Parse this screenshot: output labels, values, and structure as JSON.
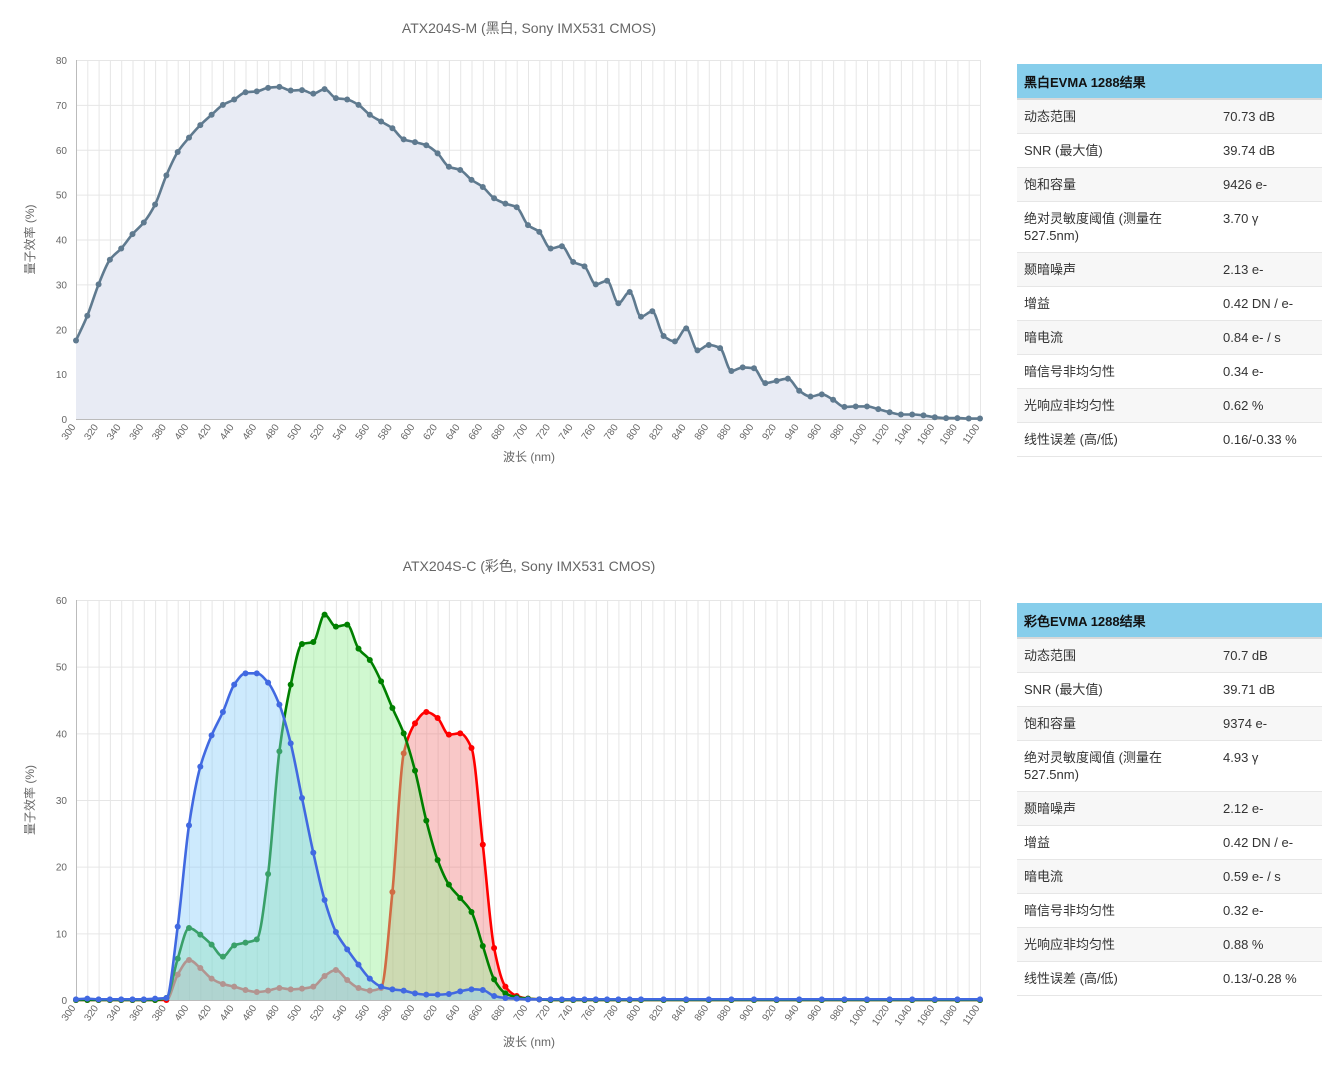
{
  "chart_data": [
    {
      "type": "area",
      "title": "ATX204S-M (黑白, Sony IMX531 CMOS)",
      "xlabel": "波长 (nm)",
      "ylabel": "量子效率 (%)",
      "xlim": [
        300,
        1100
      ],
      "ylim": [
        0,
        80
      ],
      "x_ticks": [
        300,
        320,
        340,
        360,
        380,
        400,
        420,
        440,
        460,
        480,
        500,
        520,
        540,
        560,
        580,
        600,
        620,
        640,
        660,
        680,
        700,
        720,
        740,
        760,
        780,
        800,
        820,
        840,
        860,
        880,
        900,
        920,
        940,
        960,
        980,
        1000,
        1020,
        1040,
        1060,
        1080,
        1100
      ],
      "y_ticks": [
        0,
        10,
        20,
        30,
        40,
        50,
        60,
        70,
        80
      ],
      "grid": true,
      "legend": "none",
      "series": [
        {
          "color": "#5f7a8f",
          "fill": "#e8ebf4",
          "x": [
            300,
            310,
            320,
            330,
            340,
            350,
            360,
            370,
            380,
            390,
            400,
            410,
            420,
            430,
            440,
            450,
            460,
            470,
            480,
            490,
            500,
            510,
            520,
            530,
            540,
            550,
            560,
            570,
            580,
            590,
            600,
            610,
            620,
            630,
            640,
            650,
            660,
            670,
            680,
            690,
            700,
            710,
            720,
            730,
            740,
            750,
            760,
            770,
            780,
            790,
            800,
            810,
            820,
            830,
            840,
            850,
            860,
            870,
            880,
            890,
            900,
            910,
            920,
            930,
            940,
            950,
            960,
            970,
            980,
            990,
            1000,
            1010,
            1020,
            1030,
            1040,
            1050,
            1060,
            1070,
            1080,
            1090,
            1100
          ],
          "values": [
            17.5,
            23,
            30,
            35.5,
            38,
            41.2,
            43.8,
            47.8,
            54.3,
            59.5,
            62.7,
            65.5,
            67.8,
            70,
            71.2,
            72.8,
            73,
            73.8,
            74,
            73.2,
            73.3,
            72.5,
            73.5,
            71.5,
            71.2,
            70,
            67.8,
            66.3,
            64.8,
            62.3,
            61.7,
            61,
            59.2,
            56.2,
            55.5,
            53.3,
            51.7,
            49.2,
            48,
            47.2,
            43.2,
            41.7,
            38,
            38.5,
            35,
            34,
            30,
            30.8,
            25.8,
            28.3,
            22.8,
            24,
            18.5,
            17.3,
            20.2,
            15.3,
            16.5,
            15.8,
            10.7,
            11.5,
            11.3,
            8,
            8.5,
            9,
            6.3,
            5,
            5.5,
            4.3,
            2.7,
            2.8,
            2.8,
            2.2,
            1.5,
            1,
            1,
            0.8,
            0.4,
            0.2,
            0.2,
            0.1,
            0.1
          ]
        }
      ]
    },
    {
      "type": "area",
      "title": "ATX204S-C (彩色, Sony IMX531 CMOS)",
      "xlabel": "波长 (nm)",
      "ylabel": "量子效率 (%)",
      "xlim": [
        300,
        1100
      ],
      "ylim": [
        0,
        60
      ],
      "x_ticks": [
        300,
        320,
        340,
        360,
        380,
        400,
        420,
        440,
        460,
        480,
        500,
        520,
        540,
        560,
        580,
        600,
        620,
        640,
        660,
        680,
        700,
        720,
        740,
        760,
        780,
        800,
        820,
        840,
        860,
        880,
        900,
        920,
        940,
        960,
        980,
        1000,
        1020,
        1040,
        1060,
        1080,
        1100
      ],
      "y_ticks": [
        0,
        10,
        20,
        30,
        40,
        50,
        60
      ],
      "grid": true,
      "legend": "none",
      "series": [
        {
          "color": "#ff0000",
          "fill": "rgba(240,110,110,0.38)",
          "x": [
            300,
            310,
            320,
            330,
            340,
            350,
            360,
            370,
            380,
            390,
            400,
            410,
            420,
            430,
            440,
            450,
            460,
            470,
            480,
            490,
            500,
            510,
            520,
            530,
            540,
            550,
            560,
            570,
            580,
            590,
            600,
            610,
            620,
            630,
            640,
            650,
            660,
            670,
            680,
            690,
            700,
            710,
            720,
            730,
            740,
            750,
            760,
            770,
            780,
            790,
            800,
            820,
            840,
            860,
            880,
            900,
            920,
            940,
            960,
            980,
            1000,
            1020,
            1040,
            1060,
            1080,
            1100
          ],
          "values": [
            0,
            0,
            0,
            0,
            0,
            0,
            0,
            0,
            0,
            3.8,
            6,
            4.8,
            3.2,
            2.4,
            2,
            1.5,
            1.2,
            1.4,
            1.8,
            1.6,
            1.7,
            2,
            3.6,
            4.5,
            3,
            1.8,
            1.4,
            1.8,
            16.2,
            37,
            41.5,
            43.2,
            42.3,
            39.8,
            40,
            37.8,
            23.3,
            7.8,
            2,
            0.6,
            0.2,
            0.1,
            0,
            0,
            0,
            0,
            0,
            0,
            0,
            0,
            0,
            0,
            0,
            0,
            0,
            0,
            0,
            0,
            0,
            0,
            0,
            0,
            0,
            0,
            0,
            0
          ]
        },
        {
          "color": "#008000",
          "fill": "rgba(150,240,150,0.45)",
          "x": [
            300,
            310,
            320,
            330,
            340,
            350,
            360,
            370,
            380,
            390,
            400,
            410,
            420,
            430,
            440,
            450,
            460,
            470,
            480,
            490,
            500,
            510,
            520,
            530,
            540,
            550,
            560,
            570,
            580,
            590,
            600,
            610,
            620,
            630,
            640,
            650,
            660,
            670,
            680,
            690,
            700,
            710,
            720,
            730,
            740,
            750,
            760,
            770,
            780,
            790,
            800,
            820,
            840,
            860,
            880,
            900,
            920,
            940,
            960,
            980,
            1000,
            1020,
            1040,
            1060,
            1080,
            1100
          ],
          "values": [
            0,
            0,
            0,
            0,
            0,
            0,
            0,
            0,
            0.3,
            6.2,
            10.8,
            9.8,
            8.3,
            6.5,
            8.2,
            8.6,
            9.1,
            18.9,
            37.3,
            47.3,
            53.4,
            53.7,
            57.8,
            56,
            56.3,
            52.7,
            51,
            47.8,
            43.8,
            40,
            34.4,
            26.9,
            21,
            17.3,
            15.3,
            13.2,
            8.1,
            3.1,
            1,
            0.4,
            0.2,
            0.1,
            0,
            0,
            0,
            0,
            0,
            0,
            0,
            0,
            0,
            0,
            0,
            0,
            0,
            0,
            0,
            0,
            0,
            0,
            0,
            0,
            0,
            0,
            0,
            0
          ]
        },
        {
          "color": "#4169e1",
          "fill": "rgba(135,206,250,0.42)",
          "x": [
            300,
            310,
            320,
            330,
            340,
            350,
            360,
            370,
            380,
            390,
            400,
            410,
            420,
            430,
            440,
            450,
            460,
            470,
            480,
            490,
            500,
            510,
            520,
            530,
            540,
            550,
            560,
            570,
            580,
            590,
            600,
            610,
            620,
            630,
            640,
            650,
            660,
            670,
            680,
            690,
            700,
            710,
            720,
            730,
            740,
            750,
            760,
            770,
            780,
            790,
            800,
            820,
            840,
            860,
            880,
            900,
            920,
            940,
            960,
            980,
            1000,
            1020,
            1040,
            1060,
            1080,
            1100
          ],
          "values": [
            0.1,
            0.2,
            0.1,
            0.1,
            0.1,
            0.1,
            0.1,
            0.2,
            0.3,
            11,
            26.2,
            35,
            39.7,
            43.2,
            47.3,
            49,
            49,
            47.6,
            44.3,
            38.5,
            30.3,
            22.1,
            15,
            10.2,
            7.6,
            5.3,
            3.2,
            2,
            1.6,
            1.4,
            1,
            0.8,
            0.8,
            0.9,
            1.3,
            1.6,
            1.5,
            0.6,
            0.3,
            0.2,
            0.1,
            0.1,
            0.1,
            0.1,
            0.1,
            0.1,
            0.1,
            0.1,
            0.1,
            0.1,
            0.1,
            0.1,
            0.1,
            0.1,
            0.1,
            0.1,
            0.1,
            0.1,
            0.1,
            0.1,
            0.1,
            0.1,
            0.1,
            0.1,
            0.1,
            0.1
          ]
        }
      ]
    }
  ],
  "tables": [
    {
      "title": "黑白EVMA 1288结果",
      "rows": [
        {
          "label": "动态范围",
          "value": "70.73 dB"
        },
        {
          "label": "SNR (最大值)",
          "value": "39.74 dB"
        },
        {
          "label": "饱和容量",
          "value": "9426 e-"
        },
        {
          "label": "绝对灵敏度阈值 (测量在527.5nm)",
          "value": "3.70 γ"
        },
        {
          "label": "颞暗噪声",
          "value": "2.13 e-"
        },
        {
          "label": "增益",
          "value": "0.42 DN / e-"
        },
        {
          "label": "暗电流",
          "value": "0.84 e- / s"
        },
        {
          "label": "暗信号非均匀性",
          "value": "0.34 e-"
        },
        {
          "label": "光响应非均匀性",
          "value": "0.62 %"
        },
        {
          "label": "线性误差 (高/低)",
          "value": "0.16/-0.33 %"
        }
      ]
    },
    {
      "title": "彩色EVMA 1288结果",
      "rows": [
        {
          "label": "动态范围",
          "value": "70.7 dB"
        },
        {
          "label": "SNR (最大值)",
          "value": "39.71 dB"
        },
        {
          "label": "饱和容量",
          "value": "9374 e-"
        },
        {
          "label": "绝对灵敏度阈值 (测量在527.5nm)",
          "value": "4.93 γ"
        },
        {
          "label": "颞暗噪声",
          "value": "2.12 e-"
        },
        {
          "label": "增益",
          "value": "0.42 DN / e-"
        },
        {
          "label": "暗电流",
          "value": "0.59 e- / s"
        },
        {
          "label": "暗信号非均匀性",
          "value": "0.32 e-"
        },
        {
          "label": "光响应非均匀性",
          "value": "0.88 %"
        },
        {
          "label": "线性误差 (高/低)",
          "value": "0.13/-0.28 %"
        }
      ]
    }
  ]
}
